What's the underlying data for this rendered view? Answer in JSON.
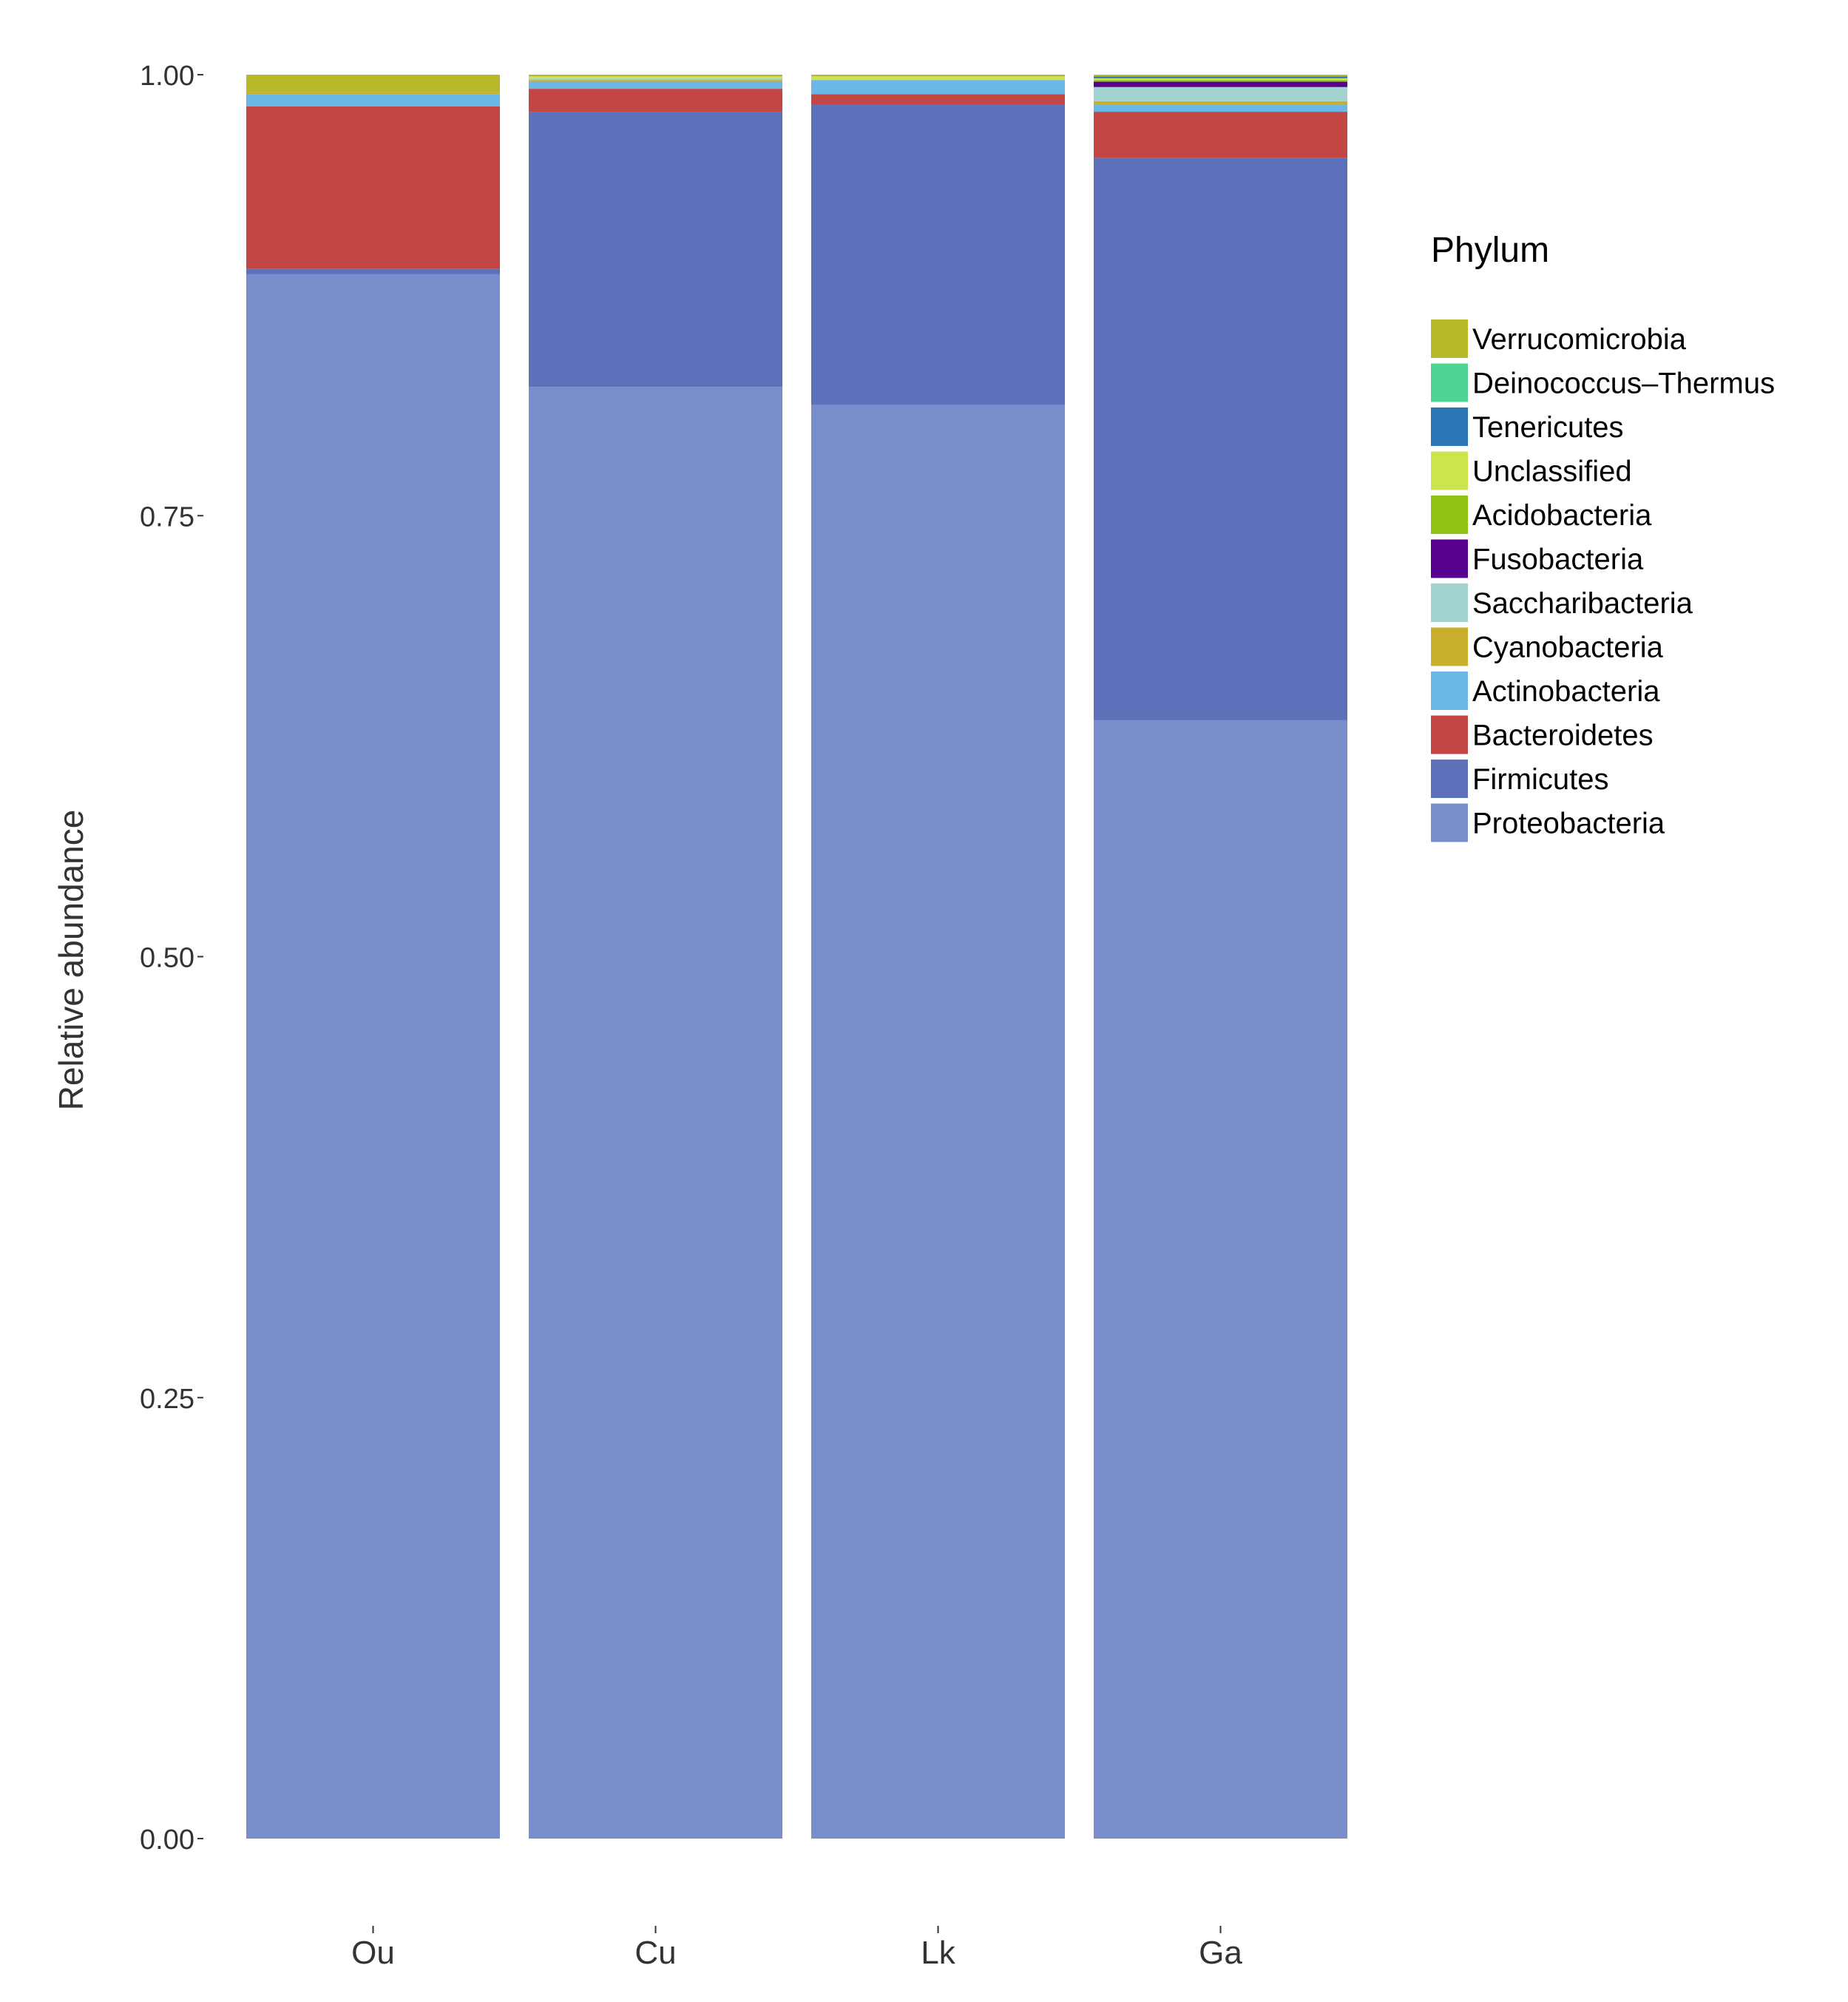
{
  "chart_data": {
    "type": "bar",
    "stacked": true,
    "title": "",
    "xlabel": "",
    "ylabel": "Relative abundance",
    "ylim": [
      0,
      1
    ],
    "yticks": [
      "0.00",
      "0.25",
      "0.50",
      "0.75",
      "1.00"
    ],
    "categories": [
      "Ou",
      "Cu",
      "Lk",
      "Ga"
    ],
    "legend_title": "Phylum",
    "legend_position": "right",
    "series": [
      {
        "name": "Proteobacteria",
        "color": "#7a8dcb",
        "values": [
          0.887,
          0.823,
          0.813,
          0.634
        ]
      },
      {
        "name": "Firmicutes",
        "color": "#5f70bb",
        "values": [
          0.003,
          0.156,
          0.17,
          0.319
        ]
      },
      {
        "name": "Bacteroidetes",
        "color": "#c24744",
        "values": [
          0.092,
          0.013,
          0.006,
          0.026
        ]
      },
      {
        "name": "Actinobacteria",
        "color": "#6bb7e8",
        "values": [
          0.007,
          0.004,
          0.008,
          0.004
        ]
      },
      {
        "name": "Cyanobacteria",
        "color": "#c8af2e",
        "values": [
          0.001,
          0.001,
          0.0,
          0.002
        ]
      },
      {
        "name": "Saccharibacteria",
        "color": "#a3d3d1",
        "values": [
          0.0,
          0.001,
          0.0,
          0.008
        ]
      },
      {
        "name": "Fusobacteria",
        "color": "#570090",
        "values": [
          0.0,
          0.0,
          0.0,
          0.003
        ]
      },
      {
        "name": "Acidobacteria",
        "color": "#8fc314",
        "values": [
          0.0,
          0.0,
          0.0,
          0.001
        ]
      },
      {
        "name": "Unclassified",
        "color": "#cde54c",
        "values": [
          0.0,
          0.001,
          0.002,
          0.001
        ]
      },
      {
        "name": "Tenericutes",
        "color": "#2a75b3",
        "values": [
          0.0,
          0.0,
          0.0,
          0.001
        ]
      },
      {
        "name": "Deinococcus–Thermus",
        "color": "#4fd394",
        "values": [
          0.0,
          0.0,
          0.0,
          0.0
        ]
      },
      {
        "name": "Verrucomicrobia",
        "color": "#b7b82a",
        "values": [
          0.01,
          0.001,
          0.001,
          0.001
        ]
      }
    ]
  }
}
